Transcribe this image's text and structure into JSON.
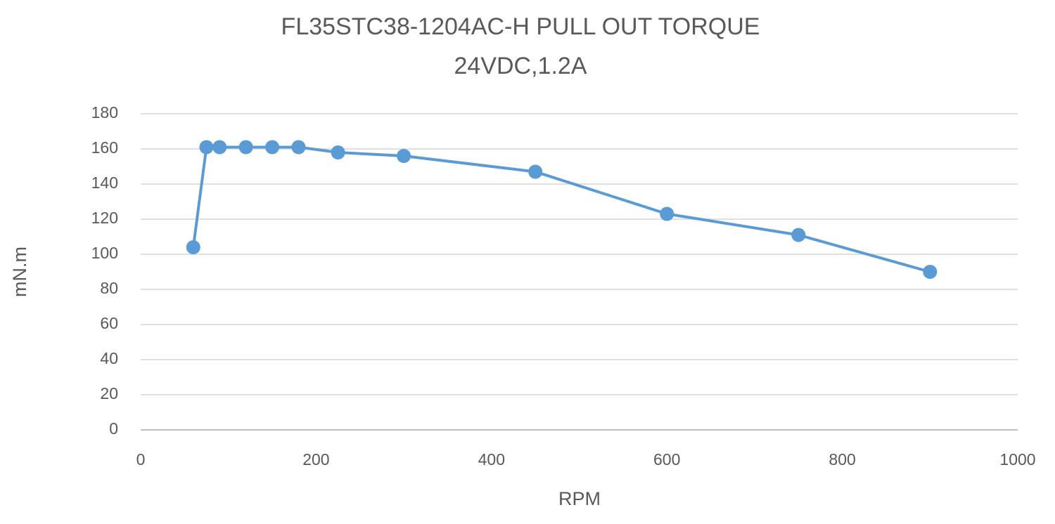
{
  "chart_data": {
    "type": "line",
    "title": "FL35STC38-1204AC-H PULL OUT TORQUE",
    "subtitle": "24VDC,1.2A",
    "x_label": "RPM",
    "y_label": "mN.m",
    "x": [
      60,
      75,
      90,
      120,
      150,
      180,
      225,
      300,
      450,
      600,
      750,
      900
    ],
    "series": [
      {
        "name": "Pull out torque",
        "color": "#5b9bd5",
        "values": [
          104,
          161,
          161,
          161,
          161,
          161,
          158,
          156,
          147,
          123,
          111,
          90
        ]
      }
    ],
    "xlim": [
      0,
      1000
    ],
    "xticks": [
      0,
      200,
      400,
      600,
      800,
      1000
    ],
    "ylim": [
      0,
      180
    ],
    "yticks": [
      0,
      20,
      40,
      60,
      80,
      100,
      120,
      140,
      160,
      180
    ],
    "grid": true
  }
}
